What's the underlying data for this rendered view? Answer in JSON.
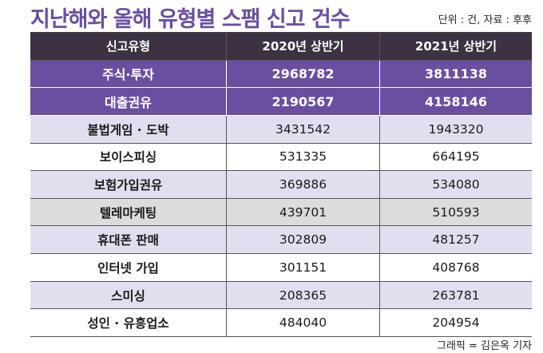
{
  "title": "지난해와 올해 유형별 스팸 신고 건수",
  "unit_note": "단위 : 건, 자료 : 후후",
  "credit": "그래픽 = 김은옥 기자",
  "colors": {
    "title": "#6a4fa0",
    "header_bg": "#3d3242",
    "highlight_bg": "#6a4fa0",
    "lavender": "#e3deef",
    "gray": "#dcdcdc"
  },
  "chart_data": {
    "type": "table",
    "title": "지난해와 올해 유형별 스팸 신고 건수",
    "columns": [
      "신고유형",
      "2020년 상반기",
      "2021년 상반기"
    ],
    "rows": [
      {
        "category": "주식·투자",
        "values": [
          2968782,
          3811138
        ]
      },
      {
        "category": "대출권유",
        "values": [
          2190567,
          4158146
        ]
      },
      {
        "category": "불법게임 · 도박",
        "values": [
          3431542,
          1943320
        ]
      },
      {
        "category": "보이스피싱",
        "values": [
          531335,
          664195
        ]
      },
      {
        "category": "보험가입권유",
        "values": [
          369886,
          534080
        ]
      },
      {
        "category": "텔레마케팅",
        "values": [
          439701,
          510593
        ]
      },
      {
        "category": "휴대폰 판매",
        "values": [
          302809,
          481257
        ]
      },
      {
        "category": "인터넷 가입",
        "values": [
          301151,
          408768
        ]
      },
      {
        "category": "스미싱",
        "values": [
          208365,
          263781
        ]
      },
      {
        "category": "성인 · 유흥업소",
        "values": [
          484040,
          204954
        ]
      }
    ]
  }
}
